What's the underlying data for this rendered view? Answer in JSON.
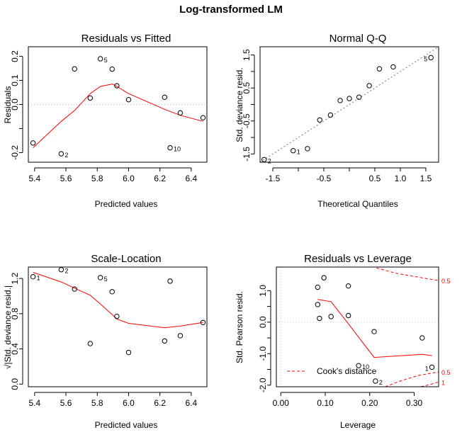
{
  "figure": {
    "title": "Log-transformed LM"
  },
  "colors": {
    "smooth": "#ff0000",
    "reference": "#bdbdbd",
    "points": "#000000"
  },
  "chart_data": [
    {
      "type": "scatter",
      "title": "Residuals vs Fitted",
      "xlabel": "Predicted values",
      "ylabel": "Residuals",
      "xlim": [
        5.36,
        6.5
      ],
      "ylim": [
        -0.24,
        0.24
      ],
      "xticks": [
        5.4,
        5.6,
        5.8,
        6.0,
        6.2,
        6.4
      ],
      "xtick_labels": [
        "5.4",
        "5.6",
        "5.8",
        "6.0",
        "6.2",
        "6.4"
      ],
      "yticks": [
        -0.2,
        -0.1,
        0.0,
        0.1,
        0.2
      ],
      "ytick_labels": [
        "-0.2",
        "",
        "0.0",
        "0.1",
        "0.2"
      ],
      "hline": 0,
      "points": [
        {
          "x": 5.39,
          "y": -0.16,
          "label": ""
        },
        {
          "x": 5.57,
          "y": -0.205,
          "label": "2"
        },
        {
          "x": 5.655,
          "y": 0.148,
          "label": ""
        },
        {
          "x": 5.755,
          "y": 0.027,
          "label": ""
        },
        {
          "x": 5.82,
          "y": 0.19,
          "label": "5"
        },
        {
          "x": 5.895,
          "y": 0.147,
          "label": ""
        },
        {
          "x": 5.925,
          "y": 0.078,
          "label": ""
        },
        {
          "x": 6.0,
          "y": 0.02,
          "label": ""
        },
        {
          "x": 6.23,
          "y": 0.03,
          "label": ""
        },
        {
          "x": 6.265,
          "y": -0.18,
          "label": "10"
        },
        {
          "x": 6.33,
          "y": -0.035,
          "label": ""
        },
        {
          "x": 6.475,
          "y": -0.055,
          "label": ""
        }
      ],
      "smooth": {
        "x": [
          5.39,
          5.57,
          5.655,
          5.755,
          5.82,
          5.895,
          5.925,
          6.0,
          6.23,
          6.33,
          6.475
        ],
        "y": [
          -0.18,
          -0.07,
          -0.025,
          0.045,
          0.075,
          0.085,
          0.075,
          0.045,
          -0.02,
          -0.045,
          -0.07
        ]
      }
    },
    {
      "type": "scatter",
      "title": "Normal Q-Q",
      "xlabel": "Theoretical Quantiles",
      "ylabel": "Std. deviance resid.",
      "xlim": [
        -1.75,
        1.75
      ],
      "ylim": [
        -1.75,
        1.75
      ],
      "xticks": [
        -1.5,
        -1.0,
        -0.5,
        0.0,
        0.5,
        1.0,
        1.5
      ],
      "xtick_labels": [
        "-1.5",
        "",
        "-0.5",
        "",
        "0.5",
        "1.0",
        "1.5"
      ],
      "yticks": [
        -1.5,
        -1.0,
        -0.5,
        0.0,
        0.5,
        1.0,
        1.5
      ],
      "ytick_labels": [
        "-1.5",
        "",
        "-0.5",
        "",
        "0.5",
        "",
        "1.5"
      ],
      "refline": {
        "slope": 1,
        "intercept": 0
      },
      "points": [
        {
          "x": -1.67,
          "y": -1.67,
          "label": "2"
        },
        {
          "x": -1.1,
          "y": -1.4,
          "label": "1"
        },
        {
          "x": -0.82,
          "y": -1.34,
          "label": ""
        },
        {
          "x": -0.58,
          "y": -0.47,
          "label": ""
        },
        {
          "x": -0.37,
          "y": -0.32,
          "label": ""
        },
        {
          "x": -0.18,
          "y": 0.12,
          "label": ""
        },
        {
          "x": 0.0,
          "y": 0.18,
          "label": ""
        },
        {
          "x": 0.19,
          "y": 0.22,
          "label": ""
        },
        {
          "x": 0.39,
          "y": 0.57,
          "label": ""
        },
        {
          "x": 0.59,
          "y": 1.08,
          "label": ""
        },
        {
          "x": 0.86,
          "y": 1.14,
          "label": ""
        },
        {
          "x": 1.6,
          "y": 1.42,
          "label": "5"
        }
      ]
    },
    {
      "type": "scatter",
      "title": "Scale-Location",
      "xlabel": "Predicted values",
      "ylabel": "√|Std. deviance resid.|",
      "xlim": [
        5.36,
        6.5
      ],
      "ylim": [
        -0.03,
        1.33
      ],
      "xticks": [
        5.4,
        5.6,
        5.8,
        6.0,
        6.2,
        6.4
      ],
      "xtick_labels": [
        "5.4",
        "5.6",
        "5.8",
        "6.0",
        "6.2",
        "6.4"
      ],
      "yticks": [
        0.0,
        0.4,
        0.8,
        1.2
      ],
      "ytick_labels": [
        "0.0",
        "0.4",
        "0.8",
        "1.2"
      ],
      "points": [
        {
          "x": 5.39,
          "y": 1.22,
          "label": "1"
        },
        {
          "x": 5.57,
          "y": 1.3,
          "label": "2"
        },
        {
          "x": 5.655,
          "y": 1.08,
          "label": ""
        },
        {
          "x": 5.755,
          "y": 0.46,
          "label": ""
        },
        {
          "x": 5.82,
          "y": 1.21,
          "label": "5"
        },
        {
          "x": 5.895,
          "y": 1.05,
          "label": ""
        },
        {
          "x": 5.925,
          "y": 0.77,
          "label": ""
        },
        {
          "x": 6.0,
          "y": 0.36,
          "label": ""
        },
        {
          "x": 6.23,
          "y": 0.49,
          "label": ""
        },
        {
          "x": 6.265,
          "y": 1.17,
          "label": ""
        },
        {
          "x": 6.33,
          "y": 0.55,
          "label": ""
        },
        {
          "x": 6.475,
          "y": 0.7,
          "label": ""
        }
      ],
      "smooth": {
        "x": [
          5.39,
          5.57,
          5.655,
          5.755,
          5.82,
          5.895,
          5.925,
          6.0,
          6.23,
          6.33,
          6.475
        ],
        "y": [
          1.27,
          1.16,
          1.09,
          1.01,
          0.91,
          0.79,
          0.74,
          0.69,
          0.64,
          0.66,
          0.7
        ]
      }
    },
    {
      "type": "scatter",
      "title": "Residuals vs Leverage",
      "xlabel": "Leverage",
      "ylabel": "Std. Pearson resid.",
      "xlim": [
        -0.01,
        0.355
      ],
      "ylim": [
        -2.05,
        1.75
      ],
      "xticks": [
        0.0,
        0.1,
        0.2,
        0.3
      ],
      "xtick_labels": [
        "0.00",
        "0.10",
        "0.20",
        "0.30"
      ],
      "yticks": [
        -2.0,
        -1.0,
        0.0,
        1.0
      ],
      "ytick_labels": [
        "-2.0",
        "-1.0",
        "0.0",
        "1.0"
      ],
      "yticks_unlabeled": [
        -1.5,
        -0.5,
        0.5
      ],
      "hline": 0,
      "vline": 0,
      "points": [
        {
          "x": 0.083,
          "y": 1.11,
          "label": ""
        },
        {
          "x": 0.083,
          "y": 0.56,
          "label": ""
        },
        {
          "x": 0.087,
          "y": 0.12,
          "label": ""
        },
        {
          "x": 0.097,
          "y": 1.41,
          "label": ""
        },
        {
          "x": 0.113,
          "y": 0.18,
          "label": ""
        },
        {
          "x": 0.152,
          "y": 1.15,
          "label": ""
        },
        {
          "x": 0.152,
          "y": 0.21,
          "label": ""
        },
        {
          "x": 0.175,
          "y": -1.38,
          "label": "10"
        },
        {
          "x": 0.21,
          "y": -0.3,
          "label": ""
        },
        {
          "x": 0.213,
          "y": -1.87,
          "label": "2"
        },
        {
          "x": 0.318,
          "y": -0.5,
          "label": ""
        },
        {
          "x": 0.34,
          "y": -1.43,
          "label": "1"
        }
      ],
      "smooth": {
        "x": [
          0.083,
          0.113,
          0.152,
          0.21,
          0.318,
          0.34
        ],
        "y": [
          0.72,
          0.65,
          -0.05,
          -1.12,
          -1.02,
          -1.06
        ]
      },
      "cooks_contours": [
        {
          "label": "0.5",
          "x": [
            0.215,
            0.26,
            0.3,
            0.355
          ],
          "y": [
            1.72,
            1.55,
            1.45,
            1.32
          ]
        },
        {
          "label": "0.5",
          "x": [
            0.235,
            0.27,
            0.31,
            0.355
          ],
          "y": [
            -2.05,
            -1.86,
            -1.69,
            -1.58
          ]
        },
        {
          "label": "1",
          "x": [
            0.315,
            0.335,
            0.355
          ],
          "y": [
            -2.05,
            -1.98,
            -1.9
          ]
        }
      ],
      "contour_labels": [
        "0.5",
        "0.5",
        "1"
      ],
      "legend": {
        "entry": "Cook's distance",
        "placement": "bottom-left",
        "style": "dashed"
      }
    }
  ]
}
